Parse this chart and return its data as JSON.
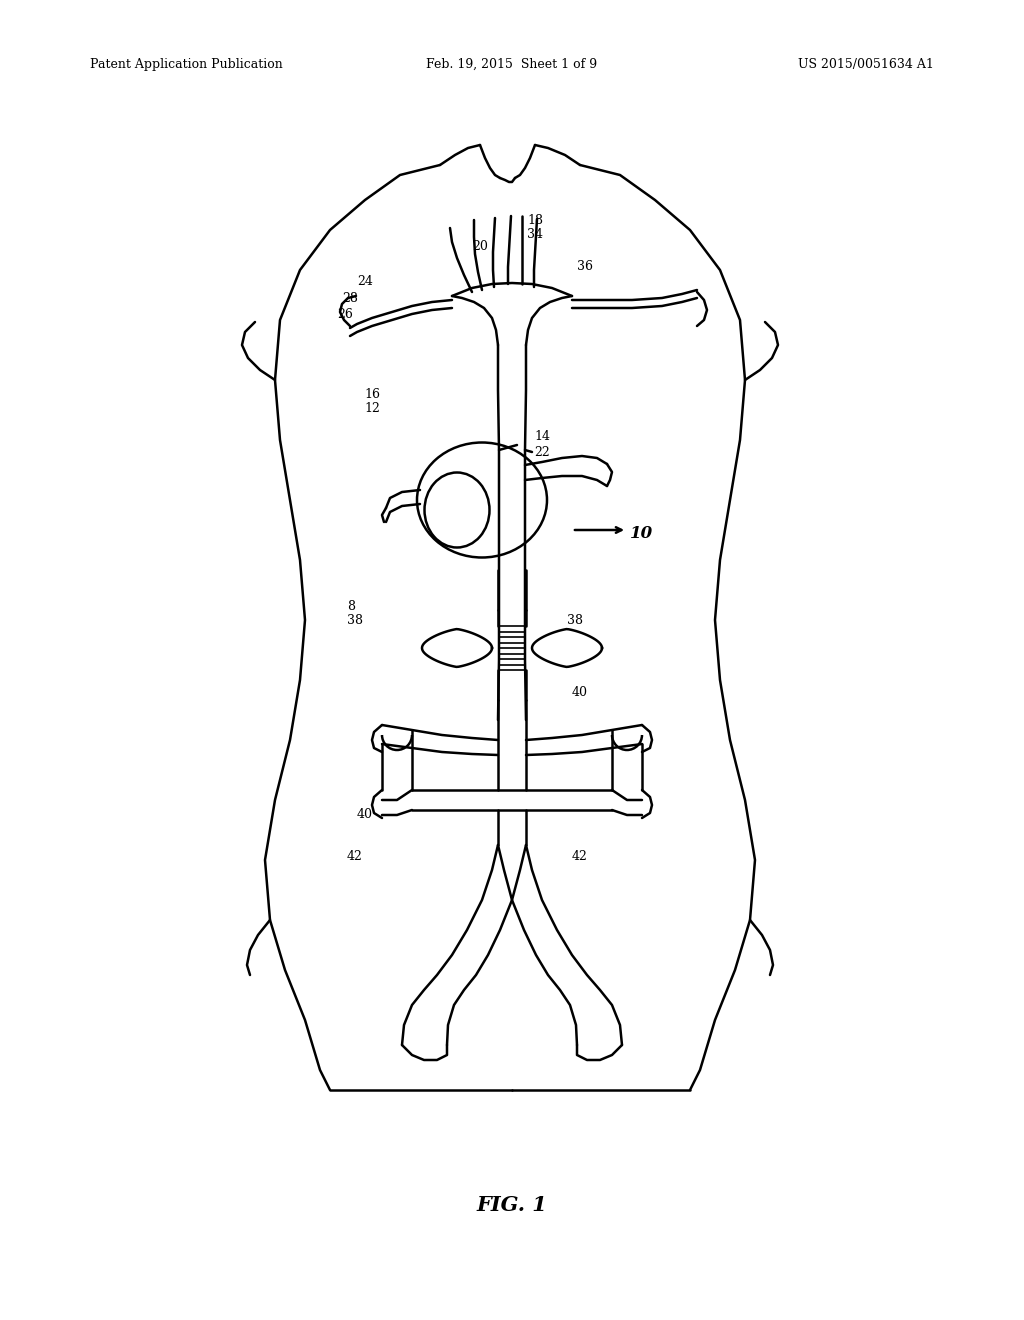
{
  "bg_color": "#ffffff",
  "line_color": "#000000",
  "lw": 1.8,
  "lw_thin": 1.2,
  "header_left": "Patent Application Publication",
  "header_mid": "Feb. 19, 2015  Sheet 1 of 9",
  "header_right": "US 2015/0051634 A1",
  "fig_label": "FIG. 1",
  "label_fs": 9,
  "label_bold_fs": 11
}
